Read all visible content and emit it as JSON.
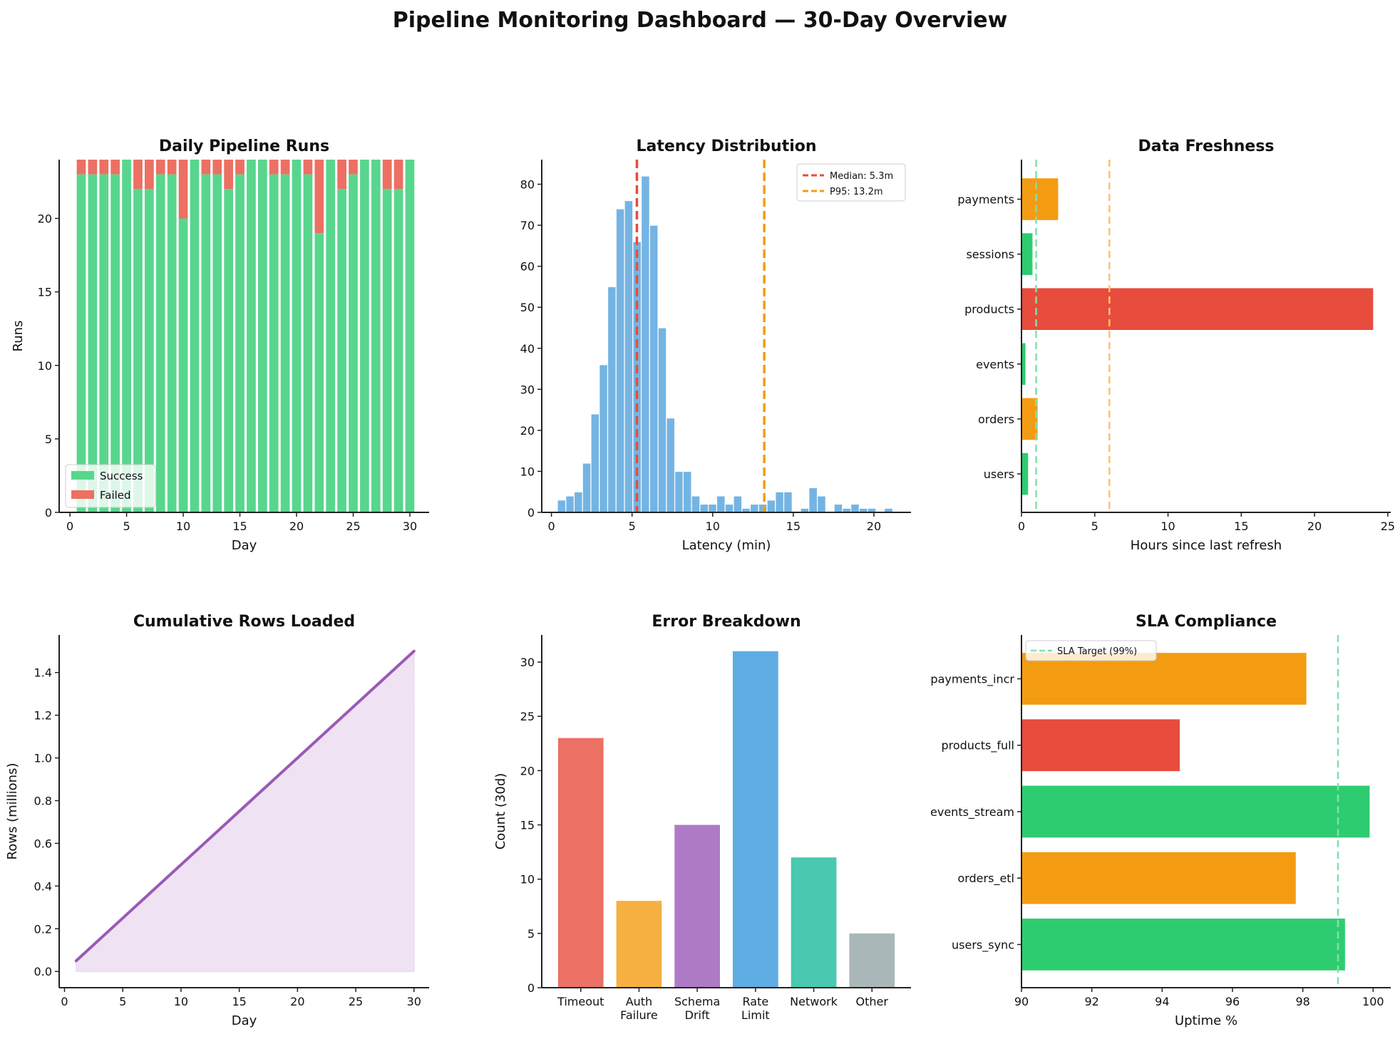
{
  "title": "Pipeline Monitoring Dashboard — 30-Day Overview",
  "chart_data": [
    {
      "type": "bar",
      "stacked": true,
      "title": "Daily Pipeline Runs",
      "xlabel": "Day",
      "ylabel": "Runs",
      "x": [
        1,
        2,
        3,
        4,
        5,
        6,
        7,
        8,
        9,
        10,
        11,
        12,
        13,
        14,
        15,
        16,
        17,
        18,
        19,
        20,
        21,
        22,
        23,
        24,
        25,
        26,
        27,
        28,
        29,
        30
      ],
      "series": [
        {
          "name": "Success",
          "color": "#58d68d",
          "values": [
            23,
            23,
            23,
            23,
            24,
            22,
            22,
            23,
            23,
            20,
            24,
            23,
            23,
            22,
            23,
            24,
            24,
            23,
            23,
            24,
            23,
            19,
            24,
            22,
            23,
            24,
            24,
            22,
            22,
            24
          ]
        },
        {
          "name": "Failed",
          "color": "#ec7063",
          "values": [
            1,
            1,
            1,
            1,
            0,
            2,
            2,
            1,
            1,
            4,
            0,
            1,
            1,
            2,
            1,
            0,
            0,
            1,
            1,
            0,
            1,
            5,
            0,
            2,
            1,
            0,
            0,
            2,
            2,
            0
          ]
        }
      ],
      "xlim": [
        -0.95,
        31.7
      ],
      "ylim": [
        0,
        24
      ],
      "xticks": [
        "0",
        "5",
        "10",
        "15",
        "20",
        "25",
        "30"
      ],
      "yticks": [
        "0",
        "5",
        "10",
        "15",
        "20"
      ],
      "legend": "lower-left",
      "grid": false
    },
    {
      "type": "bar",
      "histogram": true,
      "title": "Latency Distribution",
      "xlabel": "Latency (min)",
      "ylabel": "",
      "bin_start": 0.37,
      "bin_width": 0.52,
      "counts": [
        3,
        4,
        5,
        12,
        24,
        36,
        55,
        74,
        76,
        66,
        82,
        70,
        45,
        23,
        10,
        10,
        4,
        2,
        2,
        4,
        2,
        4,
        1,
        2,
        2,
        3,
        5,
        5,
        0,
        1,
        6,
        4,
        0,
        2,
        1,
        2,
        1,
        1,
        0,
        1
      ],
      "color": "#74b4e3",
      "xlim": [
        -0.6,
        22.3
      ],
      "ylim": [
        0,
        86
      ],
      "xticks": [
        "0",
        "5",
        "10",
        "15",
        "20"
      ],
      "yticks": [
        "0",
        "10",
        "20",
        "30",
        "40",
        "50",
        "60",
        "70",
        "80"
      ],
      "reference_lines": [
        {
          "name": "Median: 5.3m",
          "value": 5.3,
          "color": "#e74c3c"
        },
        {
          "name": "P95: 13.2m",
          "value": 13.2,
          "color": "#f39c12"
        }
      ],
      "legend": "top-right",
      "grid": false
    },
    {
      "type": "bar",
      "orientation": "horizontal",
      "title": "Data Freshness",
      "xlabel": "Hours since last refresh",
      "ylabel": "",
      "categories": [
        "users",
        "orders",
        "events",
        "products",
        "sessions",
        "payments"
      ],
      "values": [
        0.45,
        1.1,
        0.27,
        24.0,
        0.75,
        2.5
      ],
      "colors": [
        "#2ecc71",
        "#f39c12",
        "#2ecc71",
        "#e74c3c",
        "#2ecc71",
        "#f39c12"
      ],
      "thresholds": [
        {
          "value": 1,
          "color": "#82e0aa"
        },
        {
          "value": 6,
          "color": "#f8c471"
        }
      ],
      "xlim": [
        0,
        25.2
      ],
      "xticks": [
        "0",
        "5",
        "10",
        "15",
        "20",
        "25"
      ],
      "grid": false
    },
    {
      "type": "area",
      "title": "Cumulative Rows Loaded",
      "xlabel": "Day",
      "ylabel": "Rows (millions)",
      "x": [
        1,
        2,
        3,
        4,
        5,
        6,
        7,
        8,
        9,
        10,
        11,
        12,
        13,
        14,
        15,
        16,
        17,
        18,
        19,
        20,
        21,
        22,
        23,
        24,
        25,
        26,
        27,
        28,
        29,
        30
      ],
      "y": [
        0.05,
        0.1,
        0.15,
        0.2,
        0.25,
        0.3,
        0.35,
        0.4,
        0.45,
        0.5,
        0.55,
        0.6,
        0.65,
        0.7,
        0.75,
        0.8,
        0.85,
        0.9,
        0.95,
        1.0,
        1.05,
        1.1,
        1.15,
        1.2,
        1.25,
        1.3,
        1.35,
        1.4,
        1.45,
        1.5
      ],
      "color": "#9b59b6",
      "fill_color": "#efe3f3",
      "xlim": [
        -0.46,
        31.3
      ],
      "ylim": [
        -0.076,
        1.576
      ],
      "xticks": [
        "0",
        "5",
        "10",
        "15",
        "20",
        "25",
        "30"
      ],
      "yticks": [
        "0.0",
        "0.2",
        "0.4",
        "0.6",
        "0.8",
        "1.0",
        "1.2",
        "1.4"
      ],
      "grid": false
    },
    {
      "type": "bar",
      "title": "Error Breakdown",
      "xlabel": "",
      "ylabel": "Count (30d)",
      "categories": [
        [
          "Timeout"
        ],
        [
          "Auth",
          "Failure"
        ],
        [
          "Schema",
          "Drift"
        ],
        [
          "Rate",
          "Limit"
        ],
        [
          "Network"
        ],
        [
          "Other"
        ]
      ],
      "values": [
        23,
        8,
        15,
        31,
        12,
        5
      ],
      "colors": [
        "#ec7063",
        "#f5b041",
        "#af7ac5",
        "#5dade2",
        "#48c9b0",
        "#aab7b8"
      ],
      "ylim": [
        0,
        32.5
      ],
      "yticks": [
        "0",
        "5",
        "10",
        "15",
        "20",
        "25",
        "30"
      ],
      "grid": false
    },
    {
      "type": "bar",
      "orientation": "horizontal",
      "title": "SLA Compliance",
      "xlabel": "Uptime %",
      "ylabel": "",
      "categories": [
        "users_sync",
        "orders_etl",
        "events_stream",
        "products_full",
        "payments_incr"
      ],
      "values": [
        99.2,
        97.8,
        99.9,
        94.5,
        98.1
      ],
      "colors": [
        "#2ecc71",
        "#f39c12",
        "#2ecc71",
        "#e74c3c",
        "#f39c12"
      ],
      "target": {
        "name": "SLA Target (99%)",
        "value": 99,
        "color": "#82e0aa"
      },
      "xlim": [
        90,
        100.5
      ],
      "xticks": [
        "90",
        "92",
        "94",
        "96",
        "98",
        "100"
      ],
      "legend": "top-left",
      "grid": false
    }
  ]
}
